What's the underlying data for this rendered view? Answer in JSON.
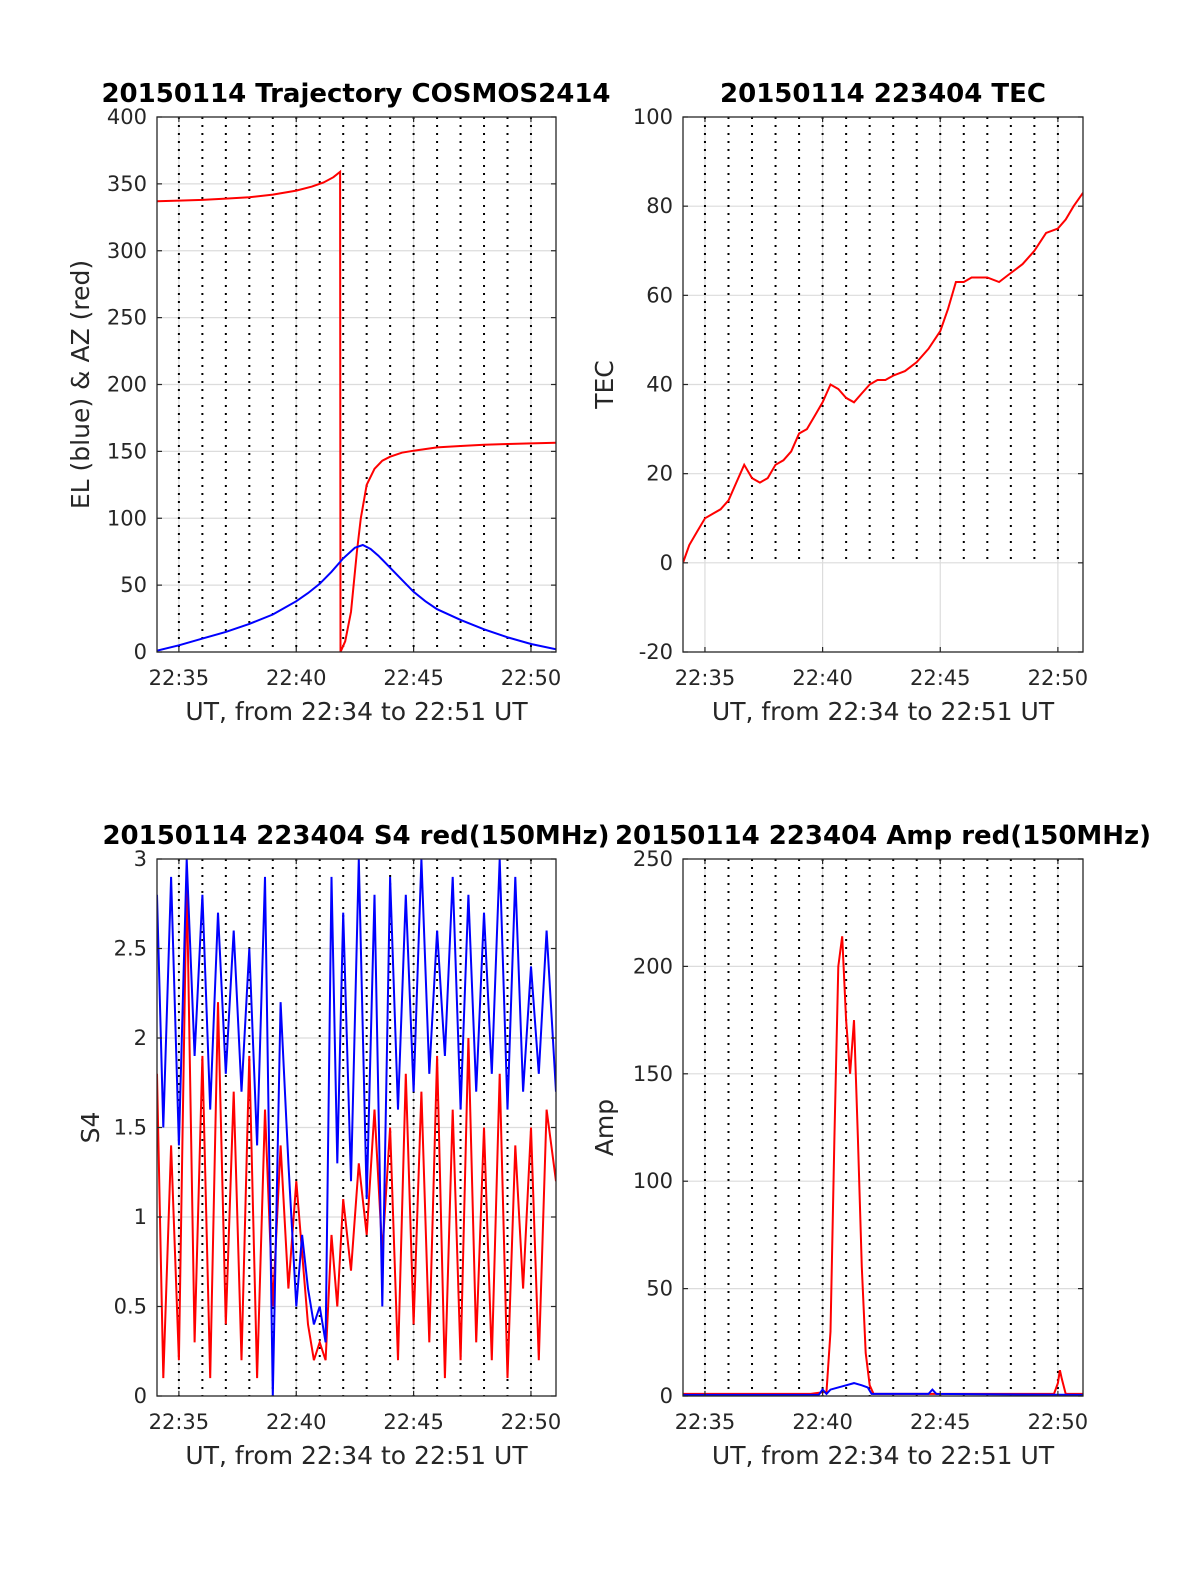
{
  "chart_data": [
    {
      "id": "traj",
      "type": "line",
      "title": "20150114 Trajectory COSMOS2414",
      "xlabel": "UT, from 22:34 to 22:51 UT",
      "ylabel": "EL (blue) & AZ (red)",
      "xlim": [
        "22:34:04",
        "22:51:04"
      ],
      "ylim": [
        0,
        400
      ],
      "yticks": [
        0,
        50,
        100,
        150,
        200,
        250,
        300,
        350,
        400
      ],
      "xticks": [
        "22:35",
        "22:40",
        "22:45",
        "22:50"
      ],
      "grid": true,
      "series": [
        {
          "color": "#ff0000",
          "x": [
            "22:34:04",
            "22:35:00",
            "22:36:00",
            "22:37:00",
            "22:38:00",
            "22:39:00",
            "22:40:00",
            "22:40:40",
            "22:41:10",
            "22:41:35",
            "22:41:52",
            "22:41:53",
            "22:42:05",
            "22:42:20",
            "22:42:35",
            "22:42:45",
            "22:43:00",
            "22:43:20",
            "22:43:40",
            "22:44:00",
            "22:44:30",
            "22:45:00",
            "22:46:00",
            "22:47:00",
            "22:48:00",
            "22:49:00",
            "22:50:00",
            "22:51:04"
          ],
          "values": [
            337,
            337.5,
            338,
            339,
            340,
            342,
            345,
            348,
            351,
            355,
            359,
            0,
            8,
            30,
            75,
            100,
            125,
            137,
            143,
            146,
            149,
            150.5,
            153,
            154,
            155,
            155.5,
            156,
            156.5
          ]
        },
        {
          "color": "#0000ff",
          "x": [
            "22:34:04",
            "22:35:00",
            "22:36:00",
            "22:37:00",
            "22:38:00",
            "22:39:00",
            "22:39:30",
            "22:40:00",
            "22:40:30",
            "22:41:00",
            "22:41:30",
            "22:42:00",
            "22:42:30",
            "22:42:50",
            "22:43:10",
            "22:43:30",
            "22:44:00",
            "22:44:30",
            "22:45:00",
            "22:45:30",
            "22:46:00",
            "22:47:00",
            "22:48:00",
            "22:49:00",
            "22:50:00",
            "22:51:04"
          ],
          "values": [
            1,
            5,
            10,
            15,
            21,
            28,
            33,
            38,
            44,
            51,
            60,
            70,
            78,
            80,
            77,
            72,
            63,
            54,
            45,
            38,
            32,
            24,
            17,
            11,
            6,
            2
          ]
        }
      ]
    },
    {
      "id": "tec",
      "type": "line",
      "title": "20150114 223404 TEC",
      "xlabel": "UT, from 22:34 to 22:51 UT",
      "ylabel": "TEC",
      "xlim": [
        "22:34:04",
        "22:51:04"
      ],
      "ylim": [
        -20,
        100
      ],
      "yticks": [
        -20,
        0,
        20,
        40,
        60,
        80,
        100
      ],
      "xticks": [
        "22:35",
        "22:40",
        "22:45",
        "22:50"
      ],
      "grid": true,
      "series": [
        {
          "color": "#ff0000",
          "x": [
            "22:34:04",
            "22:34:20",
            "22:34:40",
            "22:35:00",
            "22:35:20",
            "22:35:40",
            "22:36:00",
            "22:36:20",
            "22:36:40",
            "22:37:00",
            "22:37:20",
            "22:37:40",
            "22:38:00",
            "22:38:20",
            "22:38:40",
            "22:39:00",
            "22:39:20",
            "22:39:40",
            "22:40:00",
            "22:40:20",
            "22:40:40",
            "22:41:00",
            "22:41:20",
            "22:41:40",
            "22:42:00",
            "22:42:20",
            "22:42:40",
            "22:43:00",
            "22:43:30",
            "22:44:00",
            "22:44:30",
            "22:45:00",
            "22:45:20",
            "22:45:40",
            "22:46:00",
            "22:46:20",
            "22:46:40",
            "22:47:00",
            "22:47:30",
            "22:48:00",
            "22:48:30",
            "22:49:00",
            "22:49:30",
            "22:50:00",
            "22:50:20",
            "22:50:40",
            "22:51:04"
          ],
          "values": [
            0,
            4,
            7,
            10,
            11,
            12,
            14,
            18,
            22,
            19,
            18,
            19,
            22,
            23,
            25,
            29,
            30,
            33,
            36,
            40,
            39,
            37,
            36,
            38,
            40,
            41,
            41,
            42,
            43,
            45,
            48,
            52,
            57,
            63,
            63,
            64,
            64,
            64,
            63,
            65,
            67,
            70,
            74,
            75,
            77,
            80,
            83
          ]
        }
      ]
    },
    {
      "id": "s4",
      "type": "line",
      "title": "20150114 223404 S4 red(150MHz)",
      "xlabel": "UT, from 22:34 to 22:51 UT",
      "ylabel": "S4",
      "xlim": [
        "22:34:04",
        "22:51:04"
      ],
      "ylim": [
        0,
        3
      ],
      "yticks": [
        0,
        0.5,
        1,
        1.5,
        2,
        2.5,
        3
      ],
      "ytick_labels": [
        "0",
        "0.5",
        "1",
        "1.5",
        "2",
        "2.5",
        "3"
      ],
      "xticks": [
        "22:35",
        "22:40",
        "22:45",
        "22:50"
      ],
      "grid": true,
      "series": [
        {
          "color": "#ff0000",
          "x": [
            "22:34:04",
            "22:34:20",
            "22:34:40",
            "22:35:00",
            "22:35:20",
            "22:35:40",
            "22:36:00",
            "22:36:20",
            "22:36:40",
            "22:37:00",
            "22:37:20",
            "22:37:40",
            "22:38:00",
            "22:38:20",
            "22:38:40",
            "22:39:00",
            "22:39:20",
            "22:39:40",
            "22:40:00",
            "22:40:15",
            "22:40:30",
            "22:40:45",
            "22:41:00",
            "22:41:15",
            "22:41:30",
            "22:41:45",
            "22:42:00",
            "22:42:20",
            "22:42:40",
            "22:43:00",
            "22:43:20",
            "22:43:40",
            "22:44:00",
            "22:44:20",
            "22:44:40",
            "22:45:00",
            "22:45:20",
            "22:45:40",
            "22:46:00",
            "22:46:20",
            "22:46:40",
            "22:47:00",
            "22:47:20",
            "22:47:40",
            "22:48:00",
            "22:48:20",
            "22:48:40",
            "22:49:00",
            "22:49:20",
            "22:49:40",
            "22:50:00",
            "22:50:20",
            "22:50:40",
            "22:51:04"
          ],
          "values": [
            1.8,
            0.1,
            1.4,
            0.2,
            2.9,
            0.3,
            1.9,
            0.1,
            2.2,
            0.4,
            1.7,
            0.2,
            1.9,
            0.1,
            1.6,
            0.5,
            1.4,
            0.6,
            1.2,
            0.8,
            0.4,
            0.2,
            0.3,
            0.2,
            0.9,
            0.5,
            1.1,
            0.7,
            1.3,
            0.9,
            1.6,
            0.8,
            1.5,
            0.2,
            1.8,
            0.4,
            1.7,
            0.3,
            1.9,
            0.1,
            1.6,
            0.2,
            2.0,
            0.3,
            1.5,
            0.2,
            1.8,
            0.1,
            1.4,
            0.6,
            1.5,
            0.2,
            1.6,
            1.2
          ]
        },
        {
          "color": "#0000ff",
          "x": [
            "22:34:04",
            "22:34:20",
            "22:34:40",
            "22:35:00",
            "22:35:20",
            "22:35:40",
            "22:36:00",
            "22:36:20",
            "22:36:40",
            "22:37:00",
            "22:37:20",
            "22:37:40",
            "22:38:00",
            "22:38:20",
            "22:38:40",
            "22:39:00",
            "22:39:20",
            "22:39:40",
            "22:40:00",
            "22:40:15",
            "22:40:30",
            "22:40:45",
            "22:41:00",
            "22:41:15",
            "22:41:30",
            "22:41:45",
            "22:42:00",
            "22:42:20",
            "22:42:40",
            "22:43:00",
            "22:43:20",
            "22:43:40",
            "22:44:00",
            "22:44:20",
            "22:44:40",
            "22:45:00",
            "22:45:20",
            "22:45:40",
            "22:46:00",
            "22:46:20",
            "22:46:40",
            "22:47:00",
            "22:47:20",
            "22:47:40",
            "22:48:00",
            "22:48:20",
            "22:48:40",
            "22:49:00",
            "22:49:20",
            "22:49:40",
            "22:50:00",
            "22:50:20",
            "22:50:40",
            "22:51:04"
          ],
          "values": [
            2.8,
            1.5,
            2.9,
            1.4,
            3.0,
            1.9,
            2.8,
            1.6,
            2.7,
            1.8,
            2.6,
            1.7,
            2.5,
            1.4,
            2.9,
            0.0,
            2.2,
            1.3,
            0.5,
            0.9,
            0.6,
            0.4,
            0.5,
            0.3,
            2.9,
            1.3,
            2.7,
            1.2,
            3.0,
            1.1,
            2.8,
            0.5,
            2.9,
            1.6,
            2.8,
            1.7,
            3.0,
            1.8,
            2.6,
            1.9,
            2.9,
            1.6,
            2.8,
            1.7,
            2.7,
            1.8,
            3.0,
            1.6,
            2.9,
            1.7,
            2.4,
            1.8,
            2.6,
            1.7
          ]
        }
      ]
    },
    {
      "id": "amp",
      "type": "line",
      "title": "20150114 223404 Amp red(150MHz)",
      "xlabel": "UT, from 22:34 to 22:51 UT",
      "ylabel": "Amp",
      "xlim": [
        "22:34:04",
        "22:51:04"
      ],
      "ylim": [
        0,
        250
      ],
      "yticks": [
        0,
        50,
        100,
        150,
        200,
        250
      ],
      "xticks": [
        "22:35",
        "22:40",
        "22:45",
        "22:50"
      ],
      "grid": true,
      "series": [
        {
          "color": "#ff0000",
          "x": [
            "22:34:04",
            "22:39:30",
            "22:40:10",
            "22:40:20",
            "22:40:30",
            "22:40:40",
            "22:40:50",
            "22:41:00",
            "22:41:10",
            "22:41:20",
            "22:41:30",
            "22:41:40",
            "22:41:50",
            "22:42:00",
            "22:42:10",
            "22:42:20",
            "22:49:50",
            "22:50:00",
            "22:50:05",
            "22:50:10",
            "22:50:20",
            "22:51:04"
          ],
          "values": [
            1,
            1,
            2,
            30,
            120,
            200,
            214,
            175,
            150,
            175,
            120,
            60,
            20,
            5,
            1,
            1,
            1,
            6,
            12,
            8,
            1,
            1
          ]
        },
        {
          "color": "#0000ff",
          "x": [
            "22:34:04",
            "22:39:50",
            "22:40:00",
            "22:40:10",
            "22:40:20",
            "22:40:40",
            "22:41:00",
            "22:41:20",
            "22:41:40",
            "22:41:55",
            "22:42:05",
            "22:43:00",
            "22:44:30",
            "22:44:40",
            "22:44:50",
            "22:51:04"
          ],
          "values": [
            0.5,
            0.5,
            3,
            1,
            3,
            4,
            5,
            6,
            5,
            4,
            1,
            1,
            1,
            3,
            1,
            0.5
          ]
        }
      ]
    }
  ]
}
